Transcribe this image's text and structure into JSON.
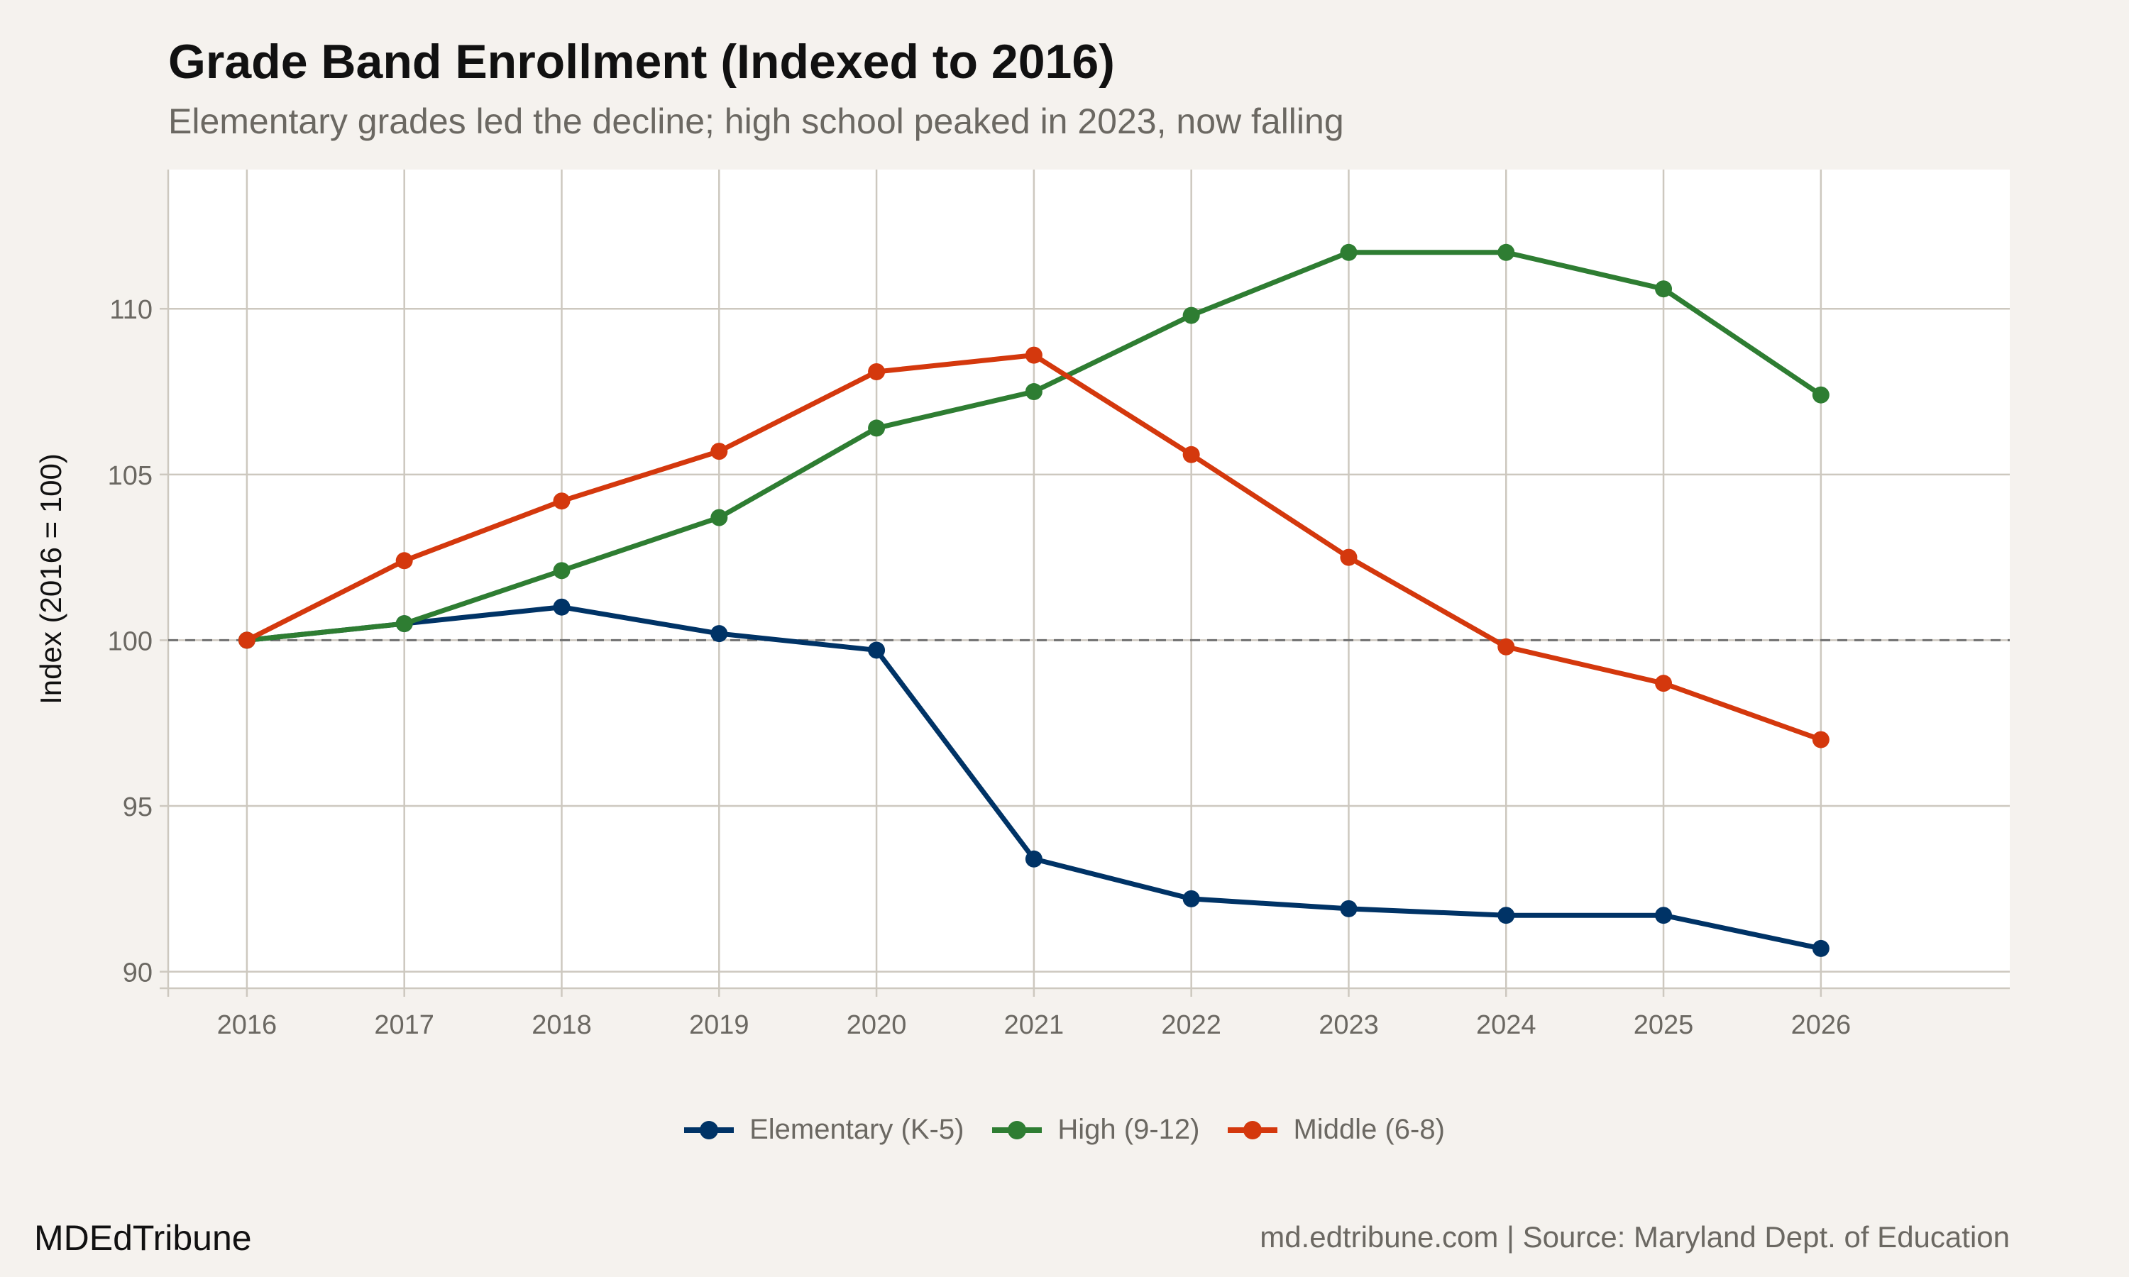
{
  "title": "Grade Band Enrollment (Indexed to 2016)",
  "subtitle": "Elementary grades led the decline; high school peaked in 2023, now falling",
  "footer": {
    "brand": "MDEdTribune",
    "source": "md.edtribune.com | Source: Maryland Dept. of Education"
  },
  "chart_data": {
    "type": "line",
    "title": "Grade Band Enrollment (Indexed to 2016)",
    "xlabel": "",
    "ylabel": "Index (2016 = 100)",
    "x": [
      2016,
      2017,
      2018,
      2019,
      2020,
      2021,
      2022,
      2023,
      2024,
      2025,
      2026
    ],
    "xlim": [
      2015.5,
      2027.2
    ],
    "ylim": [
      89.5,
      114.2
    ],
    "yticks": [
      90,
      95,
      100,
      105,
      110
    ],
    "grid": true,
    "reference_line": {
      "y": 100,
      "style": "dashed",
      "color": "#707070"
    },
    "legend_position": "bottom",
    "series": [
      {
        "name": "Elementary (K-5)",
        "color": "#003366",
        "values": [
          100,
          100.5,
          101.0,
          100.2,
          99.7,
          93.4,
          92.2,
          91.9,
          91.7,
          91.7,
          90.7
        ]
      },
      {
        "name": "High (9-12)",
        "color": "#2e7d32",
        "values": [
          100,
          100.5,
          102.1,
          103.7,
          106.4,
          107.5,
          109.8,
          111.7,
          111.7,
          110.6,
          107.4
        ]
      },
      {
        "name": "Middle (6-8)",
        "color": "#d4380d",
        "values": [
          100,
          102.4,
          104.2,
          105.7,
          108.1,
          108.6,
          105.6,
          102.5,
          99.8,
          98.7,
          97.0
        ]
      }
    ]
  }
}
